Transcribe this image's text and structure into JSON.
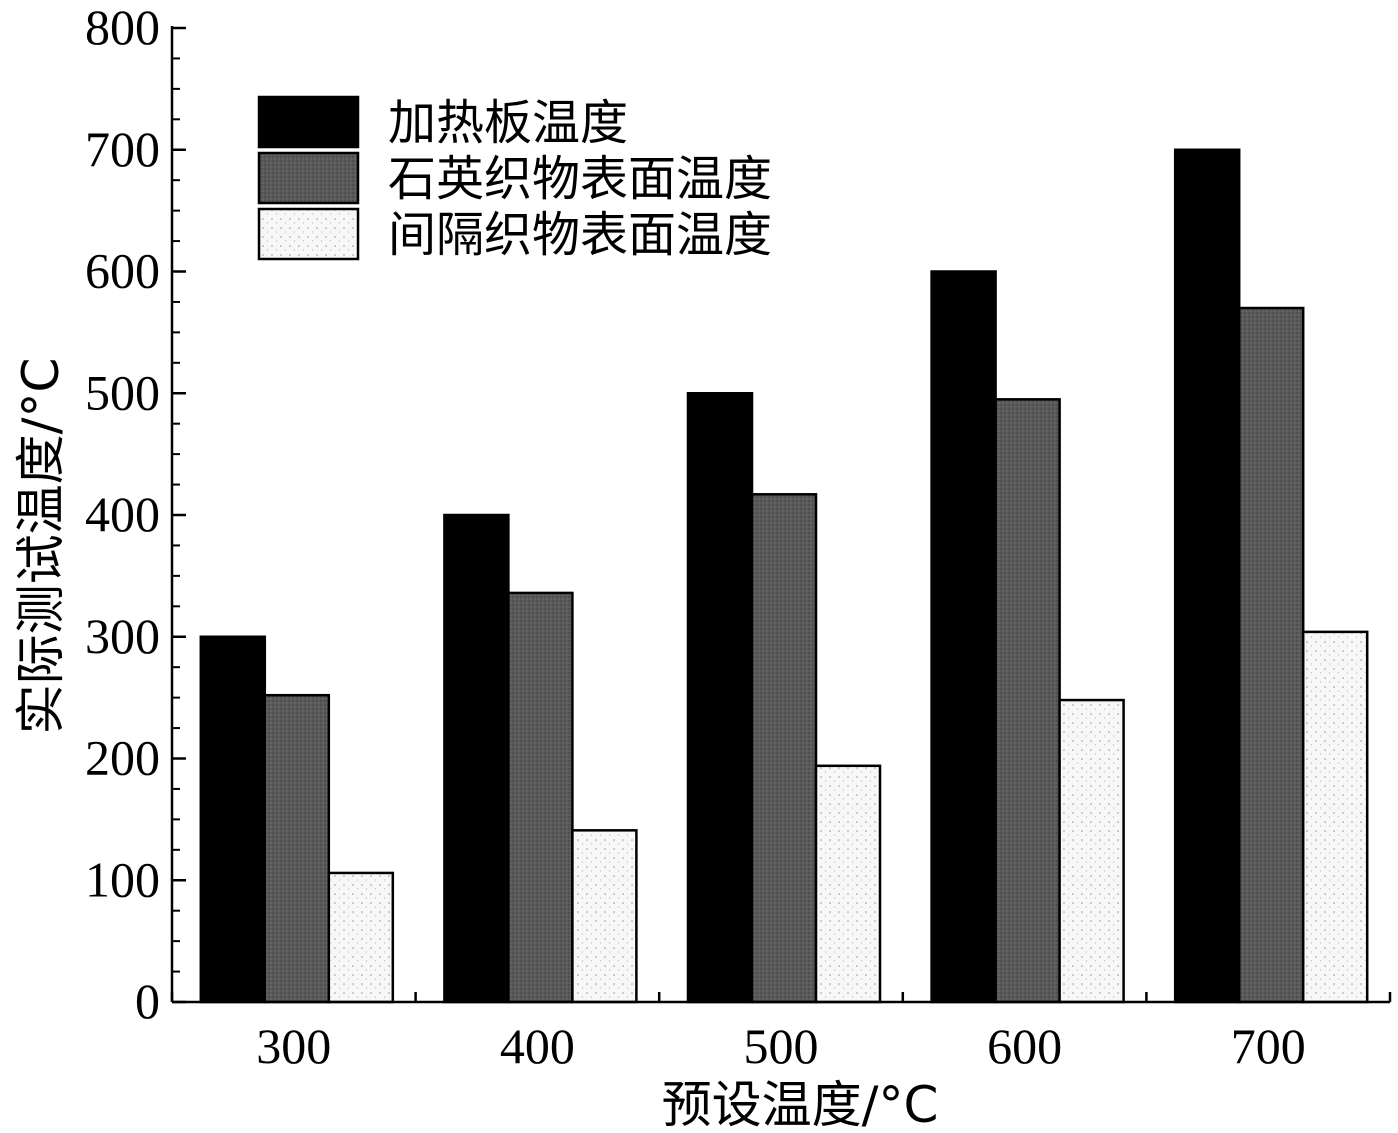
{
  "chart_data": {
    "type": "bar",
    "title": "",
    "xlabel": "预设温度/°C",
    "ylabel": "实际测试温度/°C",
    "categories": [
      "300",
      "400",
      "500",
      "600",
      "700"
    ],
    "series": [
      {
        "name": "加热板温度",
        "values": [
          300,
          400,
          500,
          600,
          700
        ],
        "color": "#000000"
      },
      {
        "name": "石英织物表面温度",
        "values": [
          252,
          336,
          417,
          495,
          570
        ],
        "color": "#595959"
      },
      {
        "name": "间隔织物表面温度",
        "values": [
          106,
          141,
          194,
          248,
          304
        ],
        "color": "#f4f4f4"
      }
    ],
    "ylim": [
      0,
      800
    ],
    "yticks": [
      "0",
      "100",
      "200",
      "300",
      "400",
      "500",
      "600",
      "700",
      "800"
    ],
    "grid": false,
    "legend_position": "top-left"
  }
}
